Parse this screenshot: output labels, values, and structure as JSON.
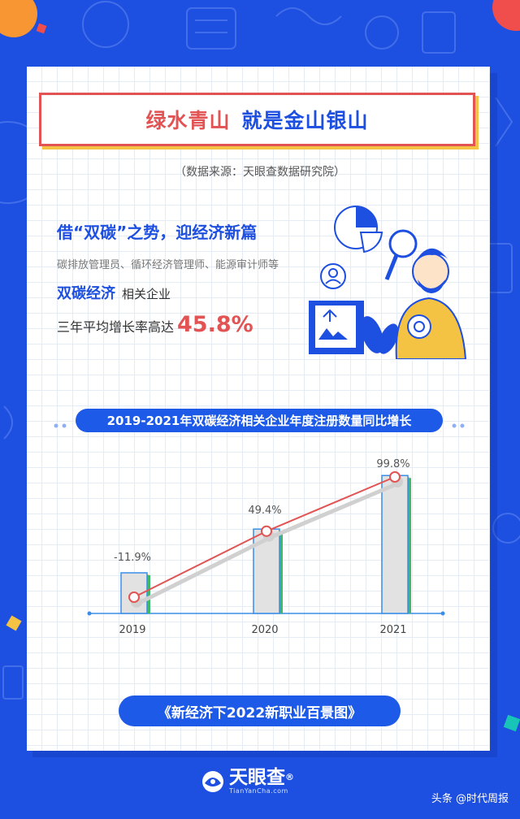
{
  "header": {
    "title_part1": "绿水青山",
    "title_part2": "就是金山银山",
    "source": "（数据来源：天眼查数据研究院）"
  },
  "intro": {
    "headline": "借“双碳”之势，迎经济新篇",
    "jobs": "碳排放管理员、循环经济管理师、能源审计师等",
    "highlight": "双碳经济",
    "highlight_suffix": "相关企业",
    "growth_text": "三年平均增长率高达",
    "growth_value": "45.8%"
  },
  "chart_title": "2019-2021年双碳经济相关企业年度注册数量同比增长",
  "chart_data": {
    "type": "bar",
    "title": "2019-2021年双碳经济相关企业年度注册数量同比增长",
    "categories": [
      "2019",
      "2020",
      "2021"
    ],
    "series": [
      {
        "values": [
          -11.9,
          49.4,
          99.8
        ]
      }
    ],
    "labels": [
      "-11.9%",
      "49.4%",
      "99.8%"
    ],
    "ylim": [
      -30,
      100
    ],
    "grid": false,
    "legend": "none"
  },
  "footer": {
    "book_title": "《新经济下2022新职业百景图》",
    "logo_name": "天眼查",
    "logo_reg": "®",
    "logo_sub": "TianYanCha.com",
    "watermark": "头条 @时代周报"
  },
  "colors": {
    "brand_blue": "#1d4fe0",
    "accent_red": "#e25353",
    "accent_yellow": "#f5c343"
  }
}
